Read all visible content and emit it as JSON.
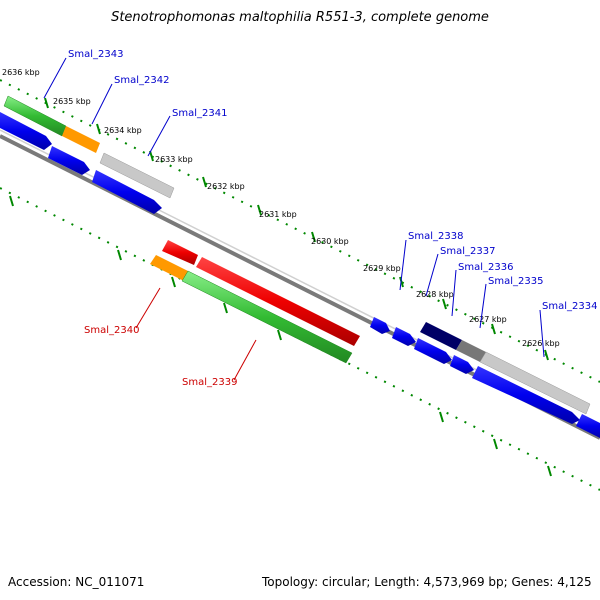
{
  "title": "Stenotrophomonas maltophilia R551-3, complete genome",
  "footer": {
    "accession": "Accession: NC_011071",
    "topology": "Topology: circular; Length: 4,573,969 bp; Genes: 4,125"
  },
  "colors": {
    "backbone": "#7a7a7a",
    "tick": "#008800",
    "blue": "#0000ee",
    "green": "#44cc44",
    "orange": "#ff9900",
    "grey": "#bbbbbb",
    "red": "#ee0000",
    "navy": "#000066",
    "label_blue": "#0000cc",
    "label_red": "#cc0000"
  },
  "kbp_labels": [
    "2636 kbp",
    "2635 kbp",
    "2634 kbp",
    "2633 kbp",
    "2632 kbp",
    "2631 kbp",
    "2630 kbp",
    "2629 kbp",
    "2628 kbp",
    "2627 kbp",
    "2626 kbp"
  ],
  "genes": [
    {
      "name": "Smal_2343",
      "strand": "+"
    },
    {
      "name": "Smal_2342",
      "strand": "+"
    },
    {
      "name": "Smal_2341",
      "strand": "+"
    },
    {
      "name": "Smal_2340",
      "strand": "-"
    },
    {
      "name": "Smal_2339",
      "strand": "-"
    },
    {
      "name": "Smal_2338",
      "strand": "+"
    },
    {
      "name": "Smal_2337",
      "strand": "+"
    },
    {
      "name": "Smal_2336",
      "strand": "+"
    },
    {
      "name": "Smal_2335",
      "strand": "+"
    },
    {
      "name": "Smal_2334",
      "strand": "+"
    }
  ]
}
